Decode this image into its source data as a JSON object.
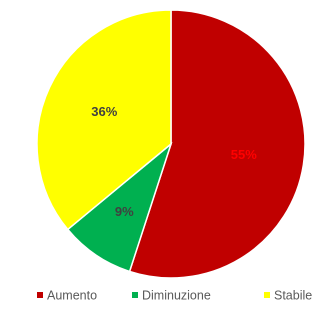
{
  "chart_data": {
    "type": "pie",
    "title": "",
    "categories": [
      "Aumento",
      "Diminuzione",
      "Stabile"
    ],
    "values": [
      55,
      9,
      36
    ],
    "labels": [
      "55%",
      "9%",
      "36%"
    ],
    "colors": [
      "#C00000",
      "#00B050",
      "#FFFF00"
    ],
    "label_colors": [
      "#FF0000",
      "#404040",
      "#404040"
    ],
    "start_angle_deg": 0,
    "direction": "clockwise",
    "legend": {
      "position": "bottom",
      "entries": [
        "Aumento",
        "Diminuzione",
        "Stabile"
      ]
    }
  }
}
